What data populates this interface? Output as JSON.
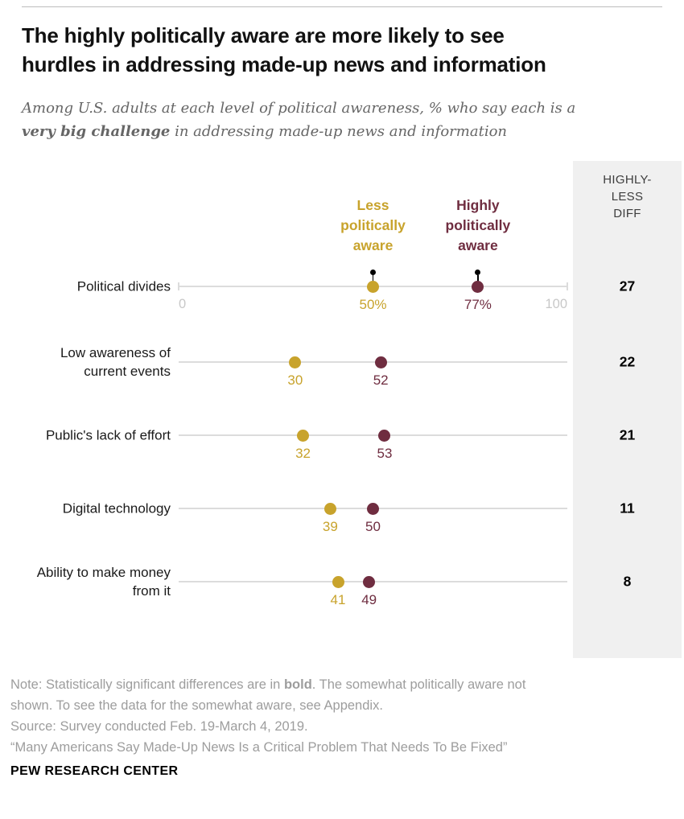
{
  "header": {
    "title_lines": [
      "The highly politically aware are more likely to see",
      "hurdles in addressing made-up news and information"
    ],
    "subtitle": {
      "line1": "Among U.S. adults at each level of political awareness, % who say each is a",
      "bold": "very big challenge",
      "line2_rest": " in addressing made-up news and information"
    }
  },
  "diff_panel": {
    "header_lines": [
      "HIGHLY-",
      "LESS",
      "DIFF"
    ],
    "values": [
      "27",
      "22",
      "21",
      "11",
      "8"
    ]
  },
  "legend": {
    "less_label": "Less politically aware",
    "highly_label": "Highly politically aware"
  },
  "chart_data": {
    "type": "scatter",
    "variant": "dot-plot",
    "title": "The highly politically aware are more likely to see hurdles in addressing made-up news and information",
    "subtitle": "Among U.S. adults at each level of political awareness, % who say each is a very big challenge in addressing made-up news and information",
    "categories": [
      "Political divides",
      "Low awareness of current events",
      "Public's lack of effort",
      "Digital technology",
      "Ability to make money from it"
    ],
    "series": [
      {
        "name": "Less politically aware",
        "color": "#c8a32c",
        "values": [
          50,
          30,
          32,
          39,
          41
        ],
        "value_labels": [
          "50%",
          "30",
          "32",
          "39",
          "41"
        ]
      },
      {
        "name": "Highly politically aware",
        "color": "#6f2d40",
        "values": [
          77,
          52,
          53,
          50,
          49
        ],
        "value_labels": [
          "77%",
          "52",
          "53",
          "50",
          "49"
        ]
      }
    ],
    "diff_header": "HIGHLY-LESS DIFF",
    "diffs": [
      27,
      22,
      21,
      11,
      8
    ],
    "xlim": [
      0,
      100
    ],
    "x_axis_tick_labels": [
      "0",
      "100"
    ],
    "grid": false,
    "legend_position": "top-with-pointer-dots"
  },
  "notes": {
    "line1_pre": "Note: Statistically significant differences are in ",
    "line1_bold": "bold",
    "line1_post": ". The somewhat politically aware not",
    "line2": "shown. To see the data for the somewhat aware, see Appendix.",
    "source": "Source: Survey conducted Feb. 19-March 4, 2019.",
    "quote": "“Many Americans Say Made-Up News Is a Critical Problem That Needs To Be Fixed”"
  },
  "footer": {
    "brand": "PEW RESEARCH CENTER"
  },
  "colors": {
    "less": "#c8a32c",
    "highly": "#6f2d40",
    "axis_line": "#dcdcdc",
    "axis_tick_label": "#c8c8c8",
    "panel_bg": "#f0f0f0",
    "note_text": "#9d9d9d",
    "pointer": "#000000"
  }
}
